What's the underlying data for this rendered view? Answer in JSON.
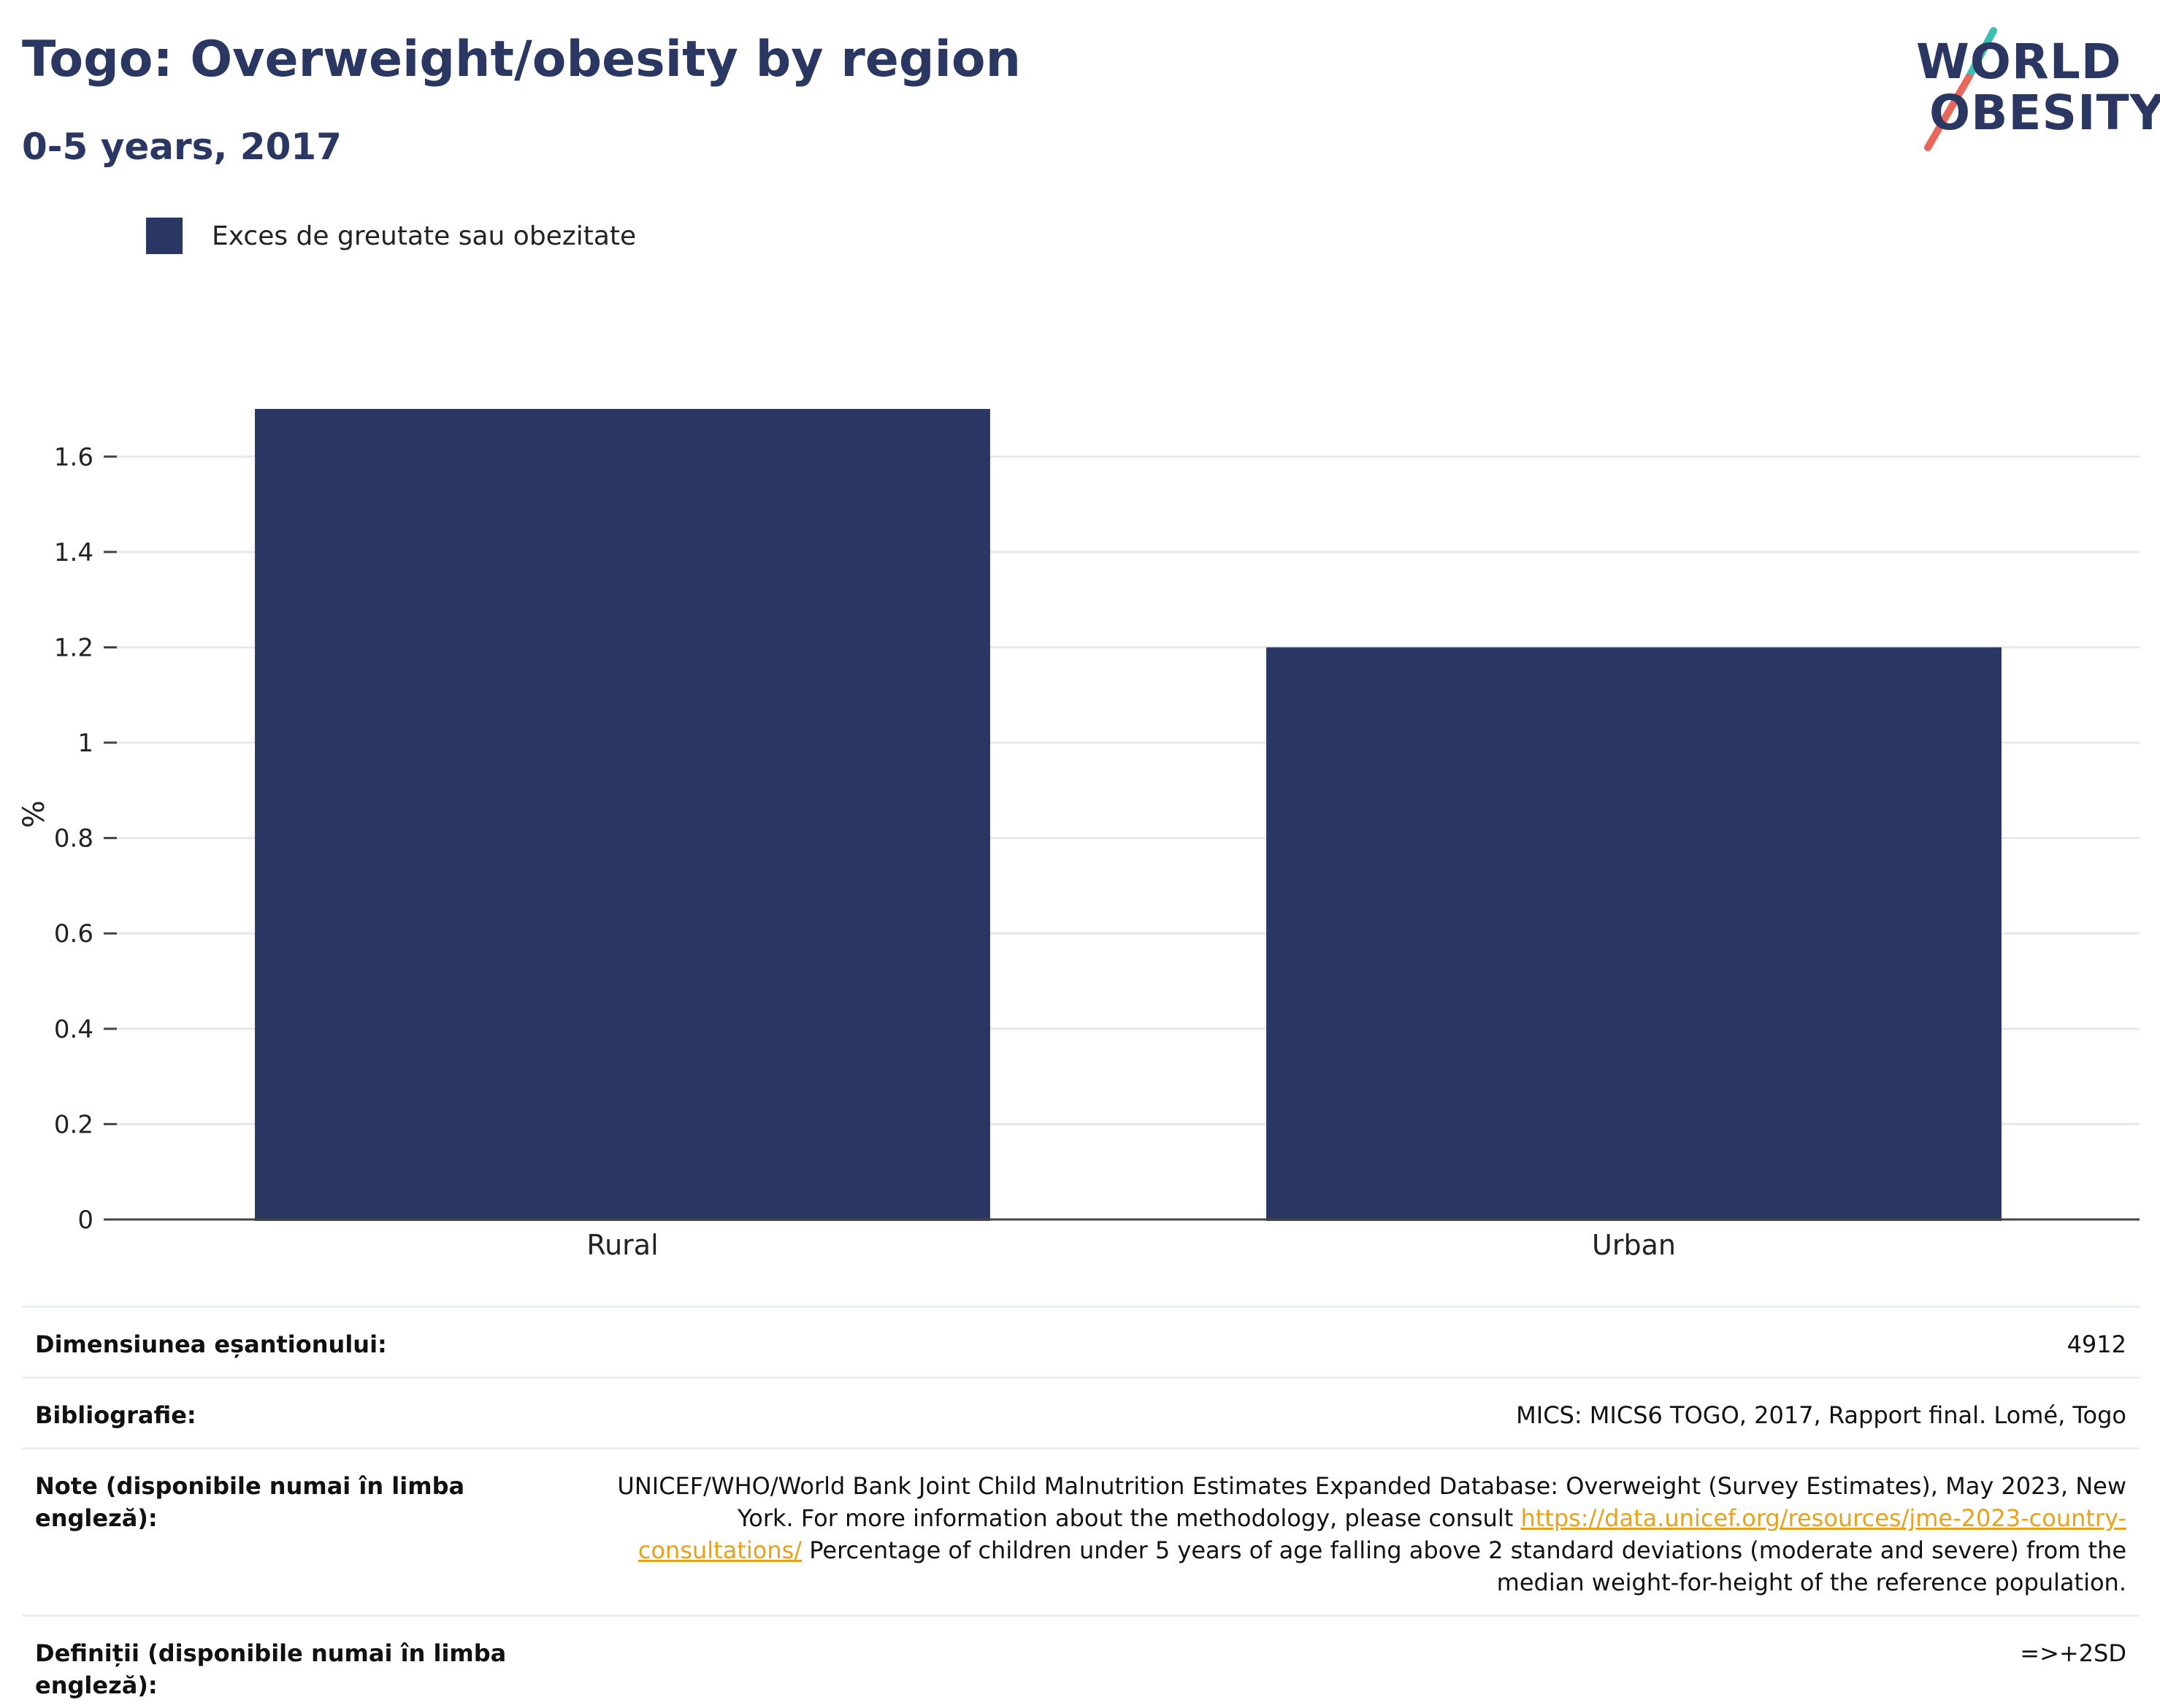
{
  "header": {
    "title": "Togo: Overweight/obesity by region",
    "subtitle": "0-5 years, 2017"
  },
  "logo": {
    "line1": "WORLD",
    "line2": "OBESITY",
    "colors": {
      "text": "#2a3763",
      "slash_top": "#3bbfb3",
      "slash_bottom": "#e8675a"
    }
  },
  "legend": {
    "items": [
      {
        "label": "Exces de greutate sau obezitate",
        "color": "#2a3763"
      }
    ]
  },
  "chart_data": {
    "type": "bar",
    "categories": [
      "Rural",
      "Urban"
    ],
    "series": [
      {
        "name": "Exces de greutate sau obezitate",
        "values": [
          1.7,
          1.2
        ],
        "color": "#2a3763"
      }
    ],
    "ylabel": "%",
    "ylim": [
      0,
      1.7
    ],
    "yticks": [
      0,
      0.2,
      0.4,
      0.6,
      0.8,
      1,
      1.2,
      1.4,
      1.6
    ],
    "ytick_labels": [
      "0",
      "0.2",
      "0.4",
      "0.6",
      "0.8",
      "1",
      "1.2",
      "1.4",
      "1.6"
    ],
    "grid": true
  },
  "info": {
    "sample": {
      "label": "Dimensiunea eșantionului:",
      "value": "4912"
    },
    "bibliography": {
      "label": "Bibliografie:",
      "value": "MICS: MICS6 TOGO, 2017, Rapport final. Lomé, Togo"
    },
    "notes": {
      "label": "Note (disponibile numai în limba engleză):",
      "text_before": "UNICEF/WHO/World Bank Joint Child Malnutrition Estimates Expanded Database: Overweight (Survey Estimates), May 2023, New York. For more information about the methodology, please consult ",
      "link": "https://data.unicef.org/resources/jme-2023-country-consultations/",
      "text_after": " Percentage of children under 5 years of age falling above 2 standard deviations (moderate and severe) from the median weight-for-height of the reference population."
    },
    "definitions": {
      "label": "Definiții (disponibile numai în limba engleză):",
      "value": "=>+2SD"
    }
  }
}
